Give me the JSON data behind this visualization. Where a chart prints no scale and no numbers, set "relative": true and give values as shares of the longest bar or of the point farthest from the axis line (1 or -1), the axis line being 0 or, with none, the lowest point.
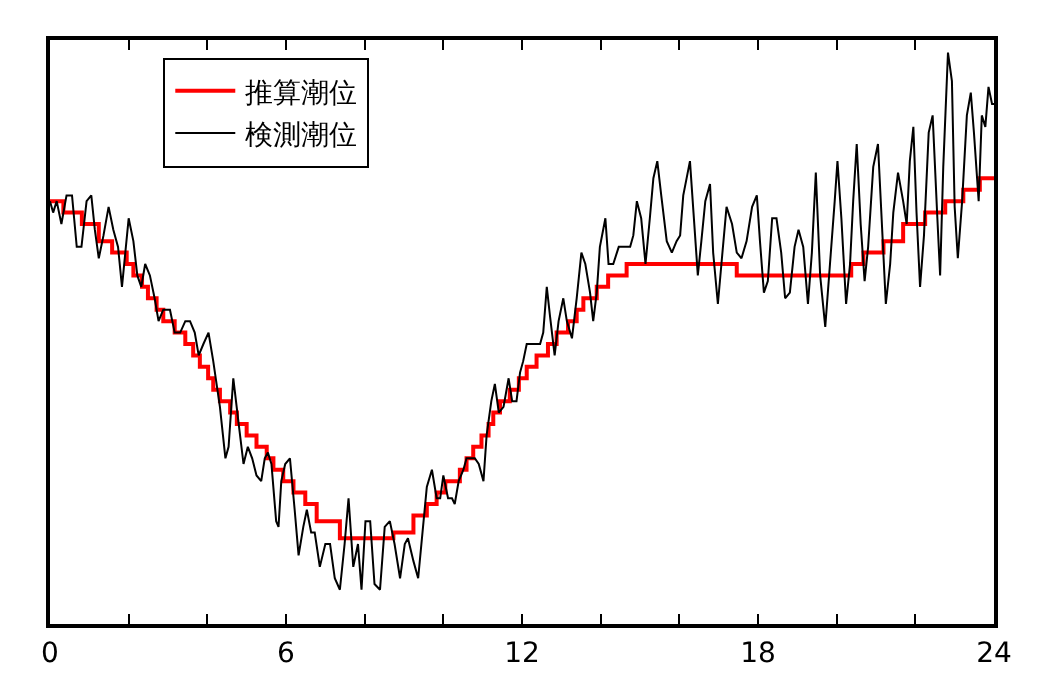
{
  "chart_data": {
    "type": "line",
    "relative": true,
    "xlim": [
      0,
      24
    ],
    "xticks": [
      0,
      {
        "value": 2,
        "label": null
      },
      {
        "value": 4,
        "label": null
      },
      6,
      {
        "value": 8,
        "label": null
      },
      {
        "value": 10,
        "label": null
      },
      12,
      {
        "value": 14,
        "label": null
      },
      {
        "value": 16,
        "label": null
      },
      18,
      {
        "value": 20,
        "label": null
      },
      {
        "value": 22,
        "label": null
      },
      24
    ],
    "tick_labels": "x",
    "grid": false,
    "legend": "top left",
    "marker": "none",
    "series": [
      {
        "name": "推算潮位",
        "type": "step",
        "color": "#ff0000",
        "x": [
          0.0,
          0.34,
          0.81,
          1.24,
          1.58,
          1.95,
          2.12,
          2.34,
          2.49,
          2.71,
          2.88,
          3.17,
          3.44,
          3.64,
          3.81,
          4.02,
          4.15,
          4.32,
          4.58,
          4.75,
          5.0,
          5.25,
          5.51,
          5.68,
          5.93,
          6.19,
          6.49,
          6.78,
          7.37,
          8.73,
          9.24,
          9.58,
          9.83,
          10.05,
          10.42,
          10.59,
          10.76,
          10.97,
          11.15,
          11.27,
          11.44,
          11.69,
          11.92,
          12.12,
          12.37,
          12.66,
          12.88,
          13.17,
          13.39,
          13.56,
          13.9,
          14.19,
          14.66,
          17.46,
          20.37,
          20.68,
          21.19,
          21.69,
          22.25,
          22.76,
          23.22,
          23.64,
          24.0
        ],
        "values": [
          0.74,
          0.72,
          0.7,
          0.67,
          0.65,
          0.63,
          0.61,
          0.59,
          0.57,
          0.55,
          0.53,
          0.51,
          0.49,
          0.47,
          0.45,
          0.43,
          0.41,
          0.39,
          0.37,
          0.35,
          0.33,
          0.31,
          0.29,
          0.27,
          0.25,
          0.23,
          0.21,
          0.18,
          0.15,
          0.16,
          0.19,
          0.21,
          0.23,
          0.25,
          0.27,
          0.29,
          0.31,
          0.33,
          0.35,
          0.37,
          0.39,
          0.41,
          0.43,
          0.45,
          0.47,
          0.49,
          0.51,
          0.53,
          0.55,
          0.57,
          0.59,
          0.61,
          0.63,
          0.61,
          0.63,
          0.65,
          0.67,
          0.7,
          0.72,
          0.74,
          0.76,
          0.78,
          0.78
        ]
      },
      {
        "name": "検測潮位",
        "color": "#000000",
        "x": [
          0.0,
          0.08,
          0.17,
          0.29,
          0.42,
          0.56,
          0.68,
          0.8,
          0.93,
          1.05,
          1.14,
          1.24,
          1.36,
          1.49,
          1.61,
          1.73,
          1.83,
          2.0,
          2.12,
          2.22,
          2.32,
          2.42,
          2.54,
          2.66,
          2.76,
          2.88,
          3.05,
          3.17,
          3.31,
          3.44,
          3.56,
          3.68,
          3.78,
          3.9,
          4.03,
          4.15,
          4.32,
          4.46,
          4.54,
          4.66,
          4.78,
          4.92,
          5.03,
          5.14,
          5.25,
          5.37,
          5.46,
          5.54,
          5.63,
          5.75,
          5.81,
          5.88,
          5.98,
          6.1,
          6.22,
          6.32,
          6.44,
          6.53,
          6.64,
          6.73,
          6.86,
          7.0,
          7.12,
          7.24,
          7.37,
          7.49,
          7.59,
          7.71,
          7.83,
          7.92,
          8.02,
          8.14,
          8.25,
          8.39,
          8.51,
          8.64,
          8.76,
          8.9,
          9.02,
          9.1,
          9.24,
          9.36,
          9.47,
          9.58,
          9.71,
          9.83,
          9.92,
          10.0,
          10.12,
          10.22,
          10.29,
          10.39,
          10.51,
          10.59,
          10.71,
          10.8,
          10.9,
          11.02,
          11.1,
          11.22,
          11.31,
          11.41,
          11.53,
          11.66,
          11.75,
          11.86,
          11.95,
          12.03,
          12.12,
          12.29,
          12.46,
          12.54,
          12.63,
          12.71,
          12.83,
          12.93,
          13.05,
          13.14,
          13.27,
          13.39,
          13.51,
          13.61,
          13.73,
          13.81,
          13.9,
          13.98,
          14.12,
          14.2,
          14.32,
          14.46,
          14.75,
          14.83,
          14.92,
          15.03,
          15.14,
          15.25,
          15.34,
          15.44,
          15.54,
          15.68,
          15.81,
          15.93,
          16.02,
          16.1,
          16.27,
          16.36,
          16.47,
          16.56,
          16.66,
          16.78,
          16.86,
          16.98,
          17.07,
          17.2,
          17.34,
          17.46,
          17.58,
          17.71,
          17.85,
          17.97,
          18.05,
          18.15,
          18.25,
          18.36,
          18.47,
          18.59,
          18.69,
          18.81,
          18.93,
          19.03,
          19.15,
          19.27,
          19.37,
          19.47,
          19.58,
          19.71,
          19.83,
          19.95,
          20.02,
          20.12,
          20.24,
          20.34,
          20.42,
          20.51,
          20.61,
          20.71,
          20.8,
          20.93,
          21.05,
          21.15,
          21.25,
          21.36,
          21.44,
          21.56,
          21.69,
          21.78,
          21.86,
          21.95,
          22.03,
          22.12,
          22.22,
          22.34,
          22.44,
          22.56,
          22.63,
          22.71,
          22.83,
          22.93,
          23.0,
          23.08,
          23.19,
          23.31,
          23.41,
          23.49,
          23.61,
          23.69,
          23.78,
          23.86,
          23.95,
          24.0
        ],
        "values": [
          0.74,
          0.72,
          0.74,
          0.7,
          0.75,
          0.75,
          0.66,
          0.66,
          0.74,
          0.75,
          0.69,
          0.64,
          0.68,
          0.73,
          0.69,
          0.66,
          0.59,
          0.71,
          0.67,
          0.61,
          0.59,
          0.63,
          0.61,
          0.57,
          0.53,
          0.55,
          0.55,
          0.51,
          0.51,
          0.53,
          0.53,
          0.51,
          0.47,
          0.49,
          0.51,
          0.46,
          0.38,
          0.29,
          0.31,
          0.43,
          0.36,
          0.28,
          0.31,
          0.29,
          0.26,
          0.25,
          0.29,
          0.3,
          0.28,
          0.18,
          0.17,
          0.25,
          0.28,
          0.29,
          0.2,
          0.12,
          0.17,
          0.2,
          0.16,
          0.16,
          0.1,
          0.14,
          0.14,
          0.08,
          0.06,
          0.14,
          0.22,
          0.1,
          0.14,
          0.06,
          0.18,
          0.18,
          0.07,
          0.06,
          0.17,
          0.18,
          0.14,
          0.08,
          0.14,
          0.15,
          0.11,
          0.08,
          0.16,
          0.24,
          0.27,
          0.22,
          0.22,
          0.26,
          0.22,
          0.22,
          0.21,
          0.25,
          0.27,
          0.29,
          0.29,
          0.29,
          0.28,
          0.25,
          0.33,
          0.39,
          0.42,
          0.37,
          0.38,
          0.43,
          0.39,
          0.39,
          0.44,
          0.46,
          0.49,
          0.49,
          0.49,
          0.51,
          0.59,
          0.54,
          0.47,
          0.53,
          0.57,
          0.53,
          0.5,
          0.57,
          0.65,
          0.63,
          0.58,
          0.53,
          0.58,
          0.66,
          0.71,
          0.63,
          0.63,
          0.66,
          0.66,
          0.68,
          0.74,
          0.71,
          0.63,
          0.71,
          0.78,
          0.81,
          0.75,
          0.67,
          0.65,
          0.67,
          0.68,
          0.75,
          0.81,
          0.72,
          0.61,
          0.67,
          0.74,
          0.77,
          0.65,
          0.56,
          0.63,
          0.73,
          0.7,
          0.65,
          0.64,
          0.67,
          0.73,
          0.75,
          0.67,
          0.58,
          0.6,
          0.71,
          0.71,
          0.65,
          0.57,
          0.58,
          0.66,
          0.69,
          0.66,
          0.56,
          0.65,
          0.79,
          0.61,
          0.52,
          0.63,
          0.74,
          0.81,
          0.71,
          0.56,
          0.63,
          0.74,
          0.84,
          0.7,
          0.6,
          0.66,
          0.8,
          0.84,
          0.7,
          0.56,
          0.63,
          0.72,
          0.79,
          0.74,
          0.7,
          0.81,
          0.87,
          0.72,
          0.59,
          0.68,
          0.86,
          0.89,
          0.71,
          0.61,
          0.8,
          1.0,
          0.95,
          0.73,
          0.64,
          0.74,
          0.89,
          0.93,
          0.86,
          0.74,
          0.89,
          0.87,
          0.94,
          0.91,
          0.91
        ]
      }
    ]
  }
}
